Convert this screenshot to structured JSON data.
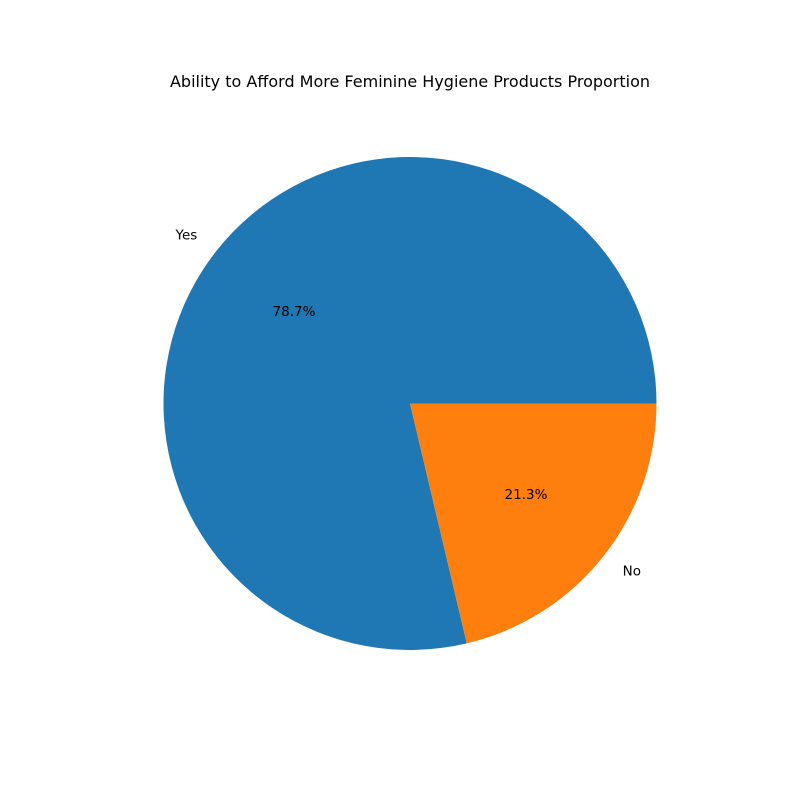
{
  "chart_data": {
    "type": "pie",
    "title": "Ability to Afford More Feminine Hygiene Products Proportion",
    "slices": [
      {
        "label": "Yes",
        "value": 78.7,
        "display": "78.7%",
        "color": "#1f77b4"
      },
      {
        "label": "No",
        "value": 21.3,
        "display": "21.3%",
        "color": "#ff7f0e"
      }
    ],
    "start_angle_deg": 0,
    "direction": "counterclockwise"
  }
}
